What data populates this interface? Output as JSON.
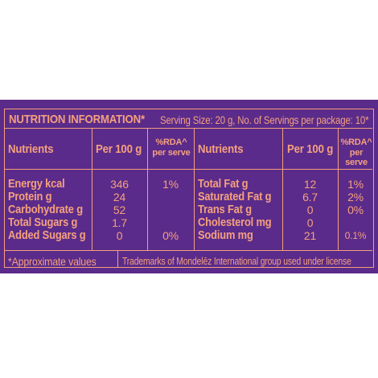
{
  "header": {
    "title": "NUTRITION INFORMATION*",
    "serving": "Serving Size: 20 g, No. of Servings per package: 10*"
  },
  "columns": {
    "nutrients": "Nutrients",
    "per100": "Per 100 g",
    "rda_line1": "%RDA^",
    "rda_line2": "per serve"
  },
  "left_rows": [
    {
      "name": "Energy kcal",
      "per100": "346",
      "rda": "1%"
    },
    {
      "name": "Protein g",
      "per100": "24",
      "rda": ""
    },
    {
      "name": "Carbohydrate g",
      "per100": "52",
      "rda": ""
    },
    {
      "name": "Total Sugars g",
      "per100": "1.7",
      "rda": ""
    },
    {
      "name": "Added Sugars g",
      "per100": "0",
      "rda": "0%"
    }
  ],
  "right_rows": [
    {
      "name": "Total Fat g",
      "per100": "12",
      "rda": "1%"
    },
    {
      "name": "Saturated Fat g",
      "per100": "6.7",
      "rda": "2%"
    },
    {
      "name": "Trans Fat g",
      "per100": "0",
      "rda": "0%"
    },
    {
      "name": "Cholesterol mg",
      "per100": "0",
      "rda": ""
    },
    {
      "name": "Sodium mg",
      "per100": "21",
      "rda": "0.1%"
    }
  ],
  "footer": {
    "note": "*Approximate values",
    "trademark": "Trademarks of Mondelēz International group used under license"
  },
  "colors": {
    "background": "#5a2b8a",
    "text": "#f5a07e"
  }
}
